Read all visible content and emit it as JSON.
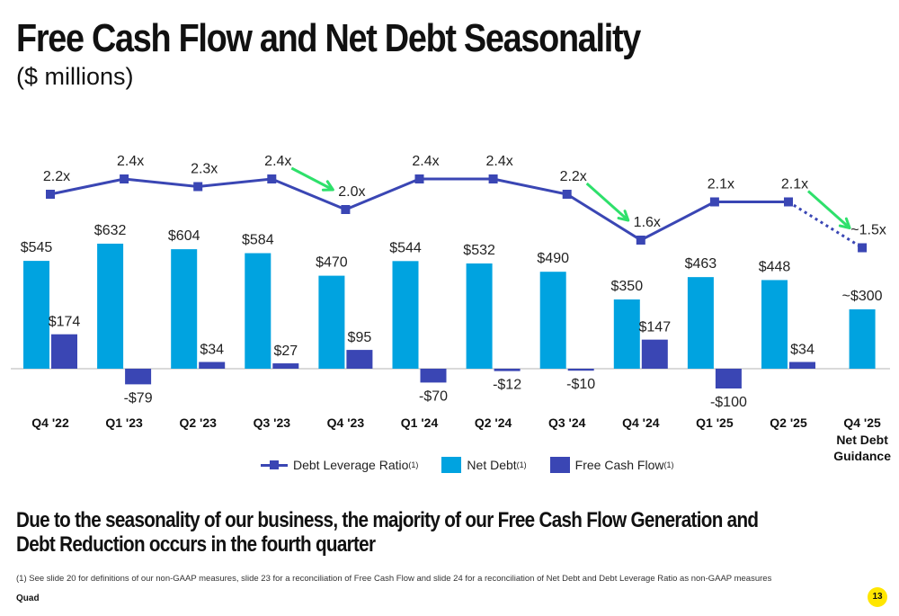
{
  "title": "Free Cash Flow and Net Debt Seasonality",
  "subtitle": "($ millions)",
  "chart_data": {
    "type": "bar",
    "categories": [
      "Q4 '22",
      "Q1 '23",
      "Q2 '23",
      "Q3 '23",
      "Q4 '23",
      "Q1 '24",
      "Q2 '24",
      "Q3 '24",
      "Q4 '24",
      "Q1 '25",
      "Q2 '25",
      "Q4 '25"
    ],
    "category_sublabels": [
      "",
      "",
      "",
      "",
      "",
      "",
      "",
      "",
      "",
      "",
      "",
      "Net Debt Guidance"
    ],
    "series": [
      {
        "name": "Net Debt",
        "type": "bar",
        "color": "#00A3E0",
        "values": [
          545,
          632,
          604,
          584,
          470,
          544,
          532,
          490,
          350,
          463,
          448,
          300
        ],
        "labels": [
          "$545",
          "$632",
          "$604",
          "$584",
          "$470",
          "$544",
          "$532",
          "$490",
          "$350",
          "$463",
          "$448",
          "~$300"
        ]
      },
      {
        "name": "Free Cash Flow",
        "type": "bar",
        "color": "#3A46B4",
        "values": [
          174,
          -79,
          34,
          27,
          95,
          -70,
          -12,
          -10,
          147,
          -100,
          34,
          null
        ],
        "labels": [
          "$174",
          "-$79",
          "$34",
          "$27",
          "$95",
          "-$70",
          "-$12",
          "-$10",
          "$147",
          "-$100",
          "$34",
          null
        ]
      },
      {
        "name": "Debt Leverage Ratio",
        "type": "line",
        "color": "#3A46B4",
        "values": [
          2.2,
          2.4,
          2.3,
          2.4,
          2.0,
          2.4,
          2.4,
          2.2,
          1.6,
          2.1,
          2.1,
          1.5
        ],
        "labels": [
          "2.2x",
          "2.4x",
          "2.3x",
          "2.4x",
          "2.0x",
          "2.4x",
          "2.4x",
          "2.2x",
          "1.6x",
          "2.1x",
          "2.1x",
          "~1.5x"
        ],
        "dashed_last_segment": true
      }
    ],
    "annotation_arrows": [
      {
        "from": "Q3 '23",
        "to": "Q4 '23",
        "color": "#2EE06B"
      },
      {
        "from": "Q3 '24",
        "to": "Q4 '24",
        "color": "#2EE06B"
      },
      {
        "from": "Q2 '25",
        "to": "Q4 '25",
        "color": "#2EE06B"
      }
    ],
    "legend": {
      "position": "bottom-center",
      "entries": [
        "Debt Leverage Ratio",
        "Net Debt",
        "Free Cash Flow"
      ],
      "footnote_marker": "(1)"
    },
    "grid": false
  },
  "takeaway": "Due to the seasonality of our business, the majority of our Free Cash Flow Generation and Debt Reduction occurs in the fourth quarter",
  "footnote": "(1)    See slide 20 for definitions of our non-GAAP measures, slide 23 for a reconciliation of Free Cash Flow and slide 24 for a reconciliation of Net Debt and Debt Leverage Ratio as non-GAAP measures",
  "brand": "Quad",
  "page_number": "13"
}
